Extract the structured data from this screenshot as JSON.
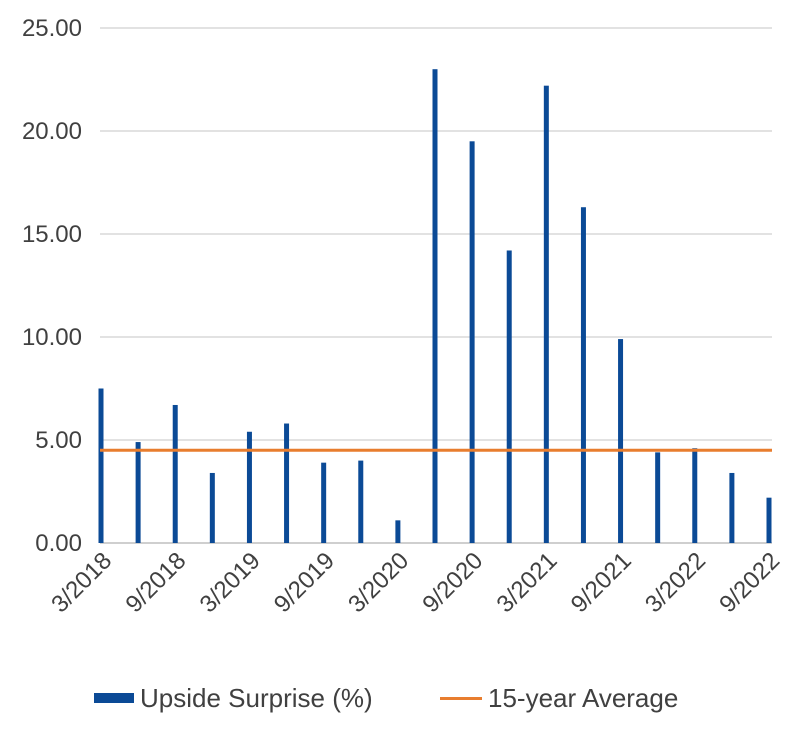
{
  "chart_data": {
    "type": "bar",
    "categories": [
      "3/2018",
      "6/2018",
      "9/2018",
      "12/2018",
      "3/2019",
      "6/2019",
      "9/2019",
      "12/2019",
      "3/2020",
      "6/2020",
      "9/2020",
      "12/2020",
      "3/2021",
      "6/2021",
      "9/2021",
      "12/2021",
      "3/2022",
      "6/2022",
      "9/2022"
    ],
    "x_tick_labels": [
      "3/2018",
      "9/2018",
      "3/2019",
      "9/2019",
      "3/2020",
      "9/2020",
      "3/2021",
      "9/2021",
      "3/2022",
      "9/2022"
    ],
    "series": [
      {
        "name": "Upside Surprise (%)",
        "kind": "bar",
        "color": "#0b4a96",
        "values": [
          7.5,
          4.9,
          6.7,
          3.4,
          5.4,
          5.8,
          3.9,
          4.0,
          1.1,
          23.0,
          19.5,
          14.2,
          22.2,
          16.3,
          9.9,
          4.4,
          4.6,
          3.4,
          2.2
        ]
      },
      {
        "name": "15-year Average",
        "kind": "line",
        "color": "#e87d2e",
        "value": 4.5
      }
    ],
    "y_ticks": [
      "0.00",
      "5.00",
      "10.00",
      "15.00",
      "20.00",
      "25.00"
    ],
    "ylim": [
      0,
      25
    ],
    "grid": true,
    "legend_position": "bottom",
    "title": "",
    "xlabel": "",
    "ylabel": ""
  }
}
